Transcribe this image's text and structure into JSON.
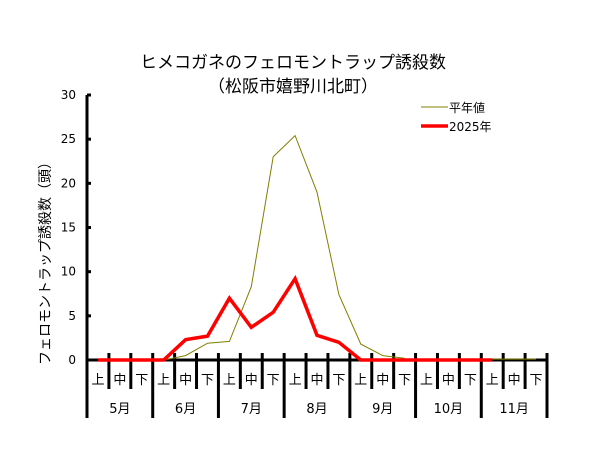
{
  "chart_data": {
    "type": "line",
    "title": "ヒメコガネのフェロモントラップ誘殺数",
    "subtitle": "（松阪市嬉野川北町）",
    "ylabel": "フェロモントラップ誘殺数（頭）",
    "xlabel": "",
    "ylim": [
      0,
      30
    ],
    "yticks": [
      0,
      5,
      10,
      15,
      20,
      25,
      30
    ],
    "grid": false,
    "legend_position": "top-right",
    "x_sub_labels": [
      "上",
      "中",
      "下",
      "上",
      "中",
      "下",
      "上",
      "中",
      "下",
      "上",
      "中",
      "下",
      "上",
      "中",
      "下",
      "上",
      "中",
      "下",
      "上",
      "中",
      "下"
    ],
    "months": [
      "5月",
      "6月",
      "7月",
      "8月",
      "9月",
      "10月",
      "11月"
    ],
    "series": [
      {
        "name": "平年値",
        "color": "#808000",
        "values": [
          null,
          null,
          null,
          0,
          0.5,
          1.9,
          2.1,
          8.3,
          23.0,
          25.4,
          19.0,
          7.4,
          1.8,
          0.5,
          0.2,
          null,
          null,
          null,
          0.1,
          0.1,
          0.1
        ]
      },
      {
        "name": "2025年",
        "color": "#ff0000",
        "values": [
          0,
          0,
          0,
          0,
          2.3,
          2.7,
          7.0,
          3.7,
          5.4,
          9.2,
          2.8,
          2.0,
          0,
          0,
          0,
          0,
          0,
          0,
          0,
          null,
          null
        ]
      }
    ]
  }
}
